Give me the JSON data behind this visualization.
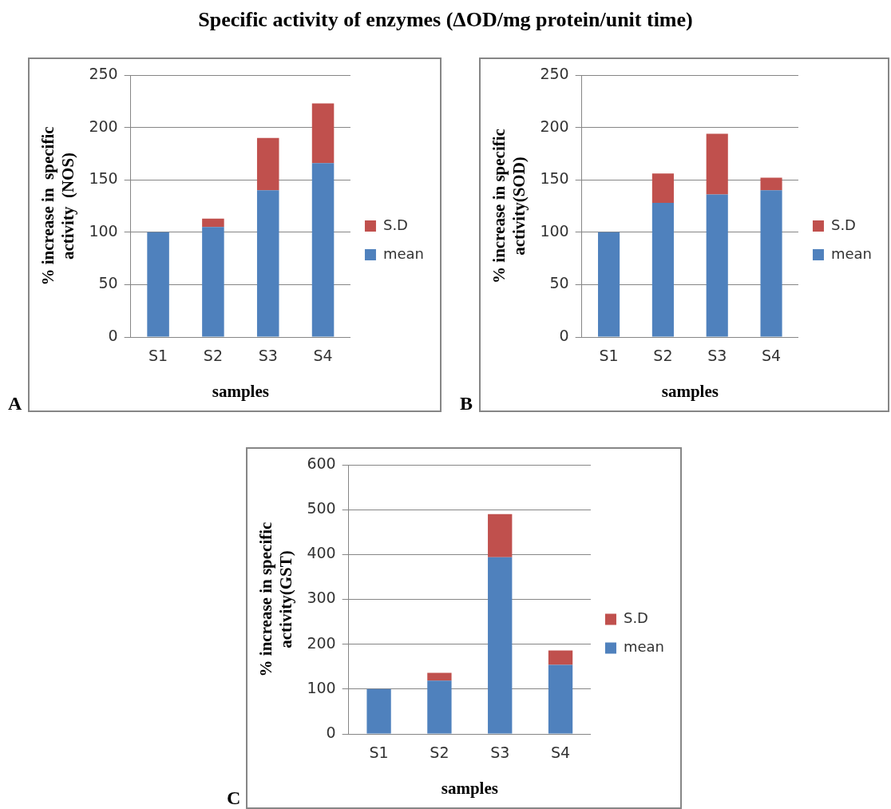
{
  "chart_data": [
    {
      "type": "bar",
      "title": "Specific activity of enzymes (ΔOD/mg protein/unit time)",
      "xlabel": "samples",
      "ylabel": "% increase in  specific\nactivity  (NOS)",
      "categories": [
        "S1",
        "S2",
        "S3",
        "S4"
      ],
      "stacked": true,
      "series": [
        {
          "name": "mean",
          "color": "#4f81bd",
          "values": [
            100,
            105,
            140,
            166
          ]
        },
        {
          "name": "S.D",
          "color": "#c0504d",
          "values": [
            0,
            8,
            50,
            57
          ]
        }
      ],
      "ylim": [
        0,
        250
      ],
      "yticks": [
        0,
        50,
        100,
        150,
        200,
        250
      ],
      "grid": "y",
      "legend": "right",
      "annotations": [
        "A"
      ]
    },
    {
      "type": "bar",
      "xlabel": "samples",
      "ylabel": "% increase in specific\nactivity(SOD)",
      "categories": [
        "S1",
        "S2",
        "S3",
        "S4"
      ],
      "stacked": true,
      "series": [
        {
          "name": "mean",
          "color": "#4f81bd",
          "values": [
            100,
            128,
            136,
            140
          ]
        },
        {
          "name": "S.D",
          "color": "#c0504d",
          "values": [
            0,
            28,
            58,
            12
          ]
        }
      ],
      "ylim": [
        0,
        250
      ],
      "yticks": [
        0,
        50,
        100,
        150,
        200,
        250
      ],
      "grid": "y",
      "legend": "right",
      "annotations": [
        "B"
      ]
    },
    {
      "type": "bar",
      "xlabel": "samples",
      "ylabel": "% increase in specific\nactivity(GST)",
      "categories": [
        "S1",
        "S2",
        "S3",
        "S4"
      ],
      "stacked": true,
      "series": [
        {
          "name": "mean",
          "color": "#4f81bd",
          "values": [
            100,
            119,
            394,
            154
          ]
        },
        {
          "name": "S.D",
          "color": "#c0504d",
          "values": [
            0,
            17,
            96,
            32
          ]
        }
      ],
      "ylim": [
        0,
        600
      ],
      "yticks": [
        0,
        100,
        200,
        300,
        400,
        500,
        600
      ],
      "grid": "y",
      "legend": "right",
      "annotations": [
        "C"
      ]
    }
  ]
}
